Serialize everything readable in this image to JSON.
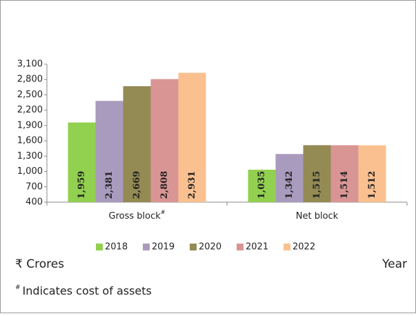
{
  "chart_data": {
    "type": "bar",
    "categories": [
      "Gross block",
      "Net block"
    ],
    "category_markers": [
      "#",
      null
    ],
    "series": [
      {
        "name": "2018",
        "color": "#92d050",
        "values": [
          1959,
          1035
        ],
        "value_labels": [
          "1,959",
          "1,035"
        ]
      },
      {
        "name": "2019",
        "color": "#a99bbd",
        "values": [
          2381,
          1342
        ],
        "value_labels": [
          "2,381",
          "1,342"
        ]
      },
      {
        "name": "2020",
        "color": "#948a54",
        "values": [
          2669,
          1515
        ],
        "value_labels": [
          "2,669",
          "1,515"
        ]
      },
      {
        "name": "2021",
        "color": "#d99594",
        "values": [
          2808,
          1514
        ],
        "value_labels": [
          "2,808",
          "1,514"
        ]
      },
      {
        "name": "2022",
        "color": "#fac090",
        "values": [
          2931,
          1512
        ],
        "value_labels": [
          "2,931",
          "1,512"
        ]
      }
    ],
    "ylim": [
      400,
      3100
    ],
    "yticks": [
      {
        "value": 400,
        "label": "400"
      },
      {
        "value": 700,
        "label": "700"
      },
      {
        "value": 1000,
        "label": "1,000"
      },
      {
        "value": 1300,
        "label": "1,300"
      },
      {
        "value": 1600,
        "label": "1,600"
      },
      {
        "value": 1900,
        "label": "1,900"
      },
      {
        "value": 2200,
        "label": "2,200"
      },
      {
        "value": 2500,
        "label": "2,500"
      },
      {
        "value": 2800,
        "label": "2,800"
      },
      {
        "value": 3100,
        "label": "3,100"
      }
    ],
    "y_unit_label": "₹ Crores",
    "x_label": "Year",
    "footnote": {
      "marker": "#",
      "text": "Indicates cost of assets"
    },
    "legend": "bottom"
  }
}
